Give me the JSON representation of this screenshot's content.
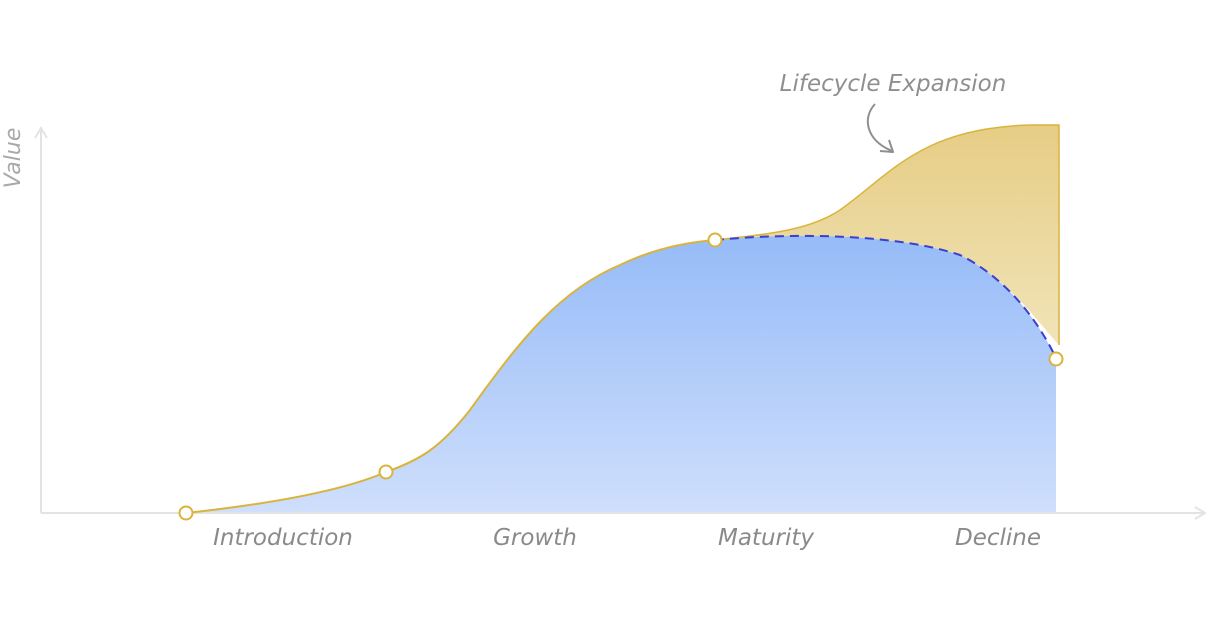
{
  "diagram": {
    "axis": {
      "y_label": "Value"
    },
    "stages": [
      "Introduction",
      "Growth",
      "Maturity",
      "Decline"
    ],
    "annotation": "Lifecycle Expansion",
    "colors": {
      "curve": "#d9b43c",
      "base_fill_top": "#96bbf8",
      "base_fill_bottom": "#cfdffc",
      "expansion_fill_top": "#e6cd85",
      "expansion_fill_bottom": "#f1e4b8",
      "decline_dashed": "#3a3fd0",
      "axis": "#e3e3e3"
    }
  }
}
